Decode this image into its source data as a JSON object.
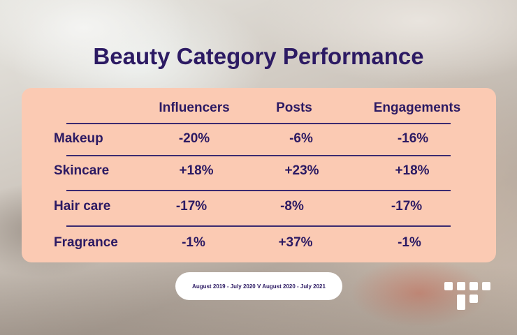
{
  "title": "Beauty Category Performance",
  "chart_data": {
    "type": "table",
    "title": "Beauty Category Performance",
    "columns": [
      "Influencers",
      "Posts",
      "Engagements"
    ],
    "rows": [
      {
        "category": "Makeup",
        "values": [
          "-20%",
          "-6%",
          "-16%"
        ]
      },
      {
        "category": "Skincare",
        "values": [
          "+18%",
          "+23%",
          "+18%"
        ]
      },
      {
        "category": "Hair care",
        "values": [
          "-17%",
          "-8%",
          "-17%"
        ]
      },
      {
        "category": "Fragrance",
        "values": [
          "-1%",
          "+37%",
          "-1%"
        ]
      }
    ]
  },
  "footer": {
    "date_range": "August 2019 - July 2020  V August 2020 - July 2021"
  },
  "colors": {
    "text": "#2c1a63",
    "card": "#fbcab3",
    "pill": "#ffffff"
  },
  "logo_icon": "brand-logo-icon"
}
